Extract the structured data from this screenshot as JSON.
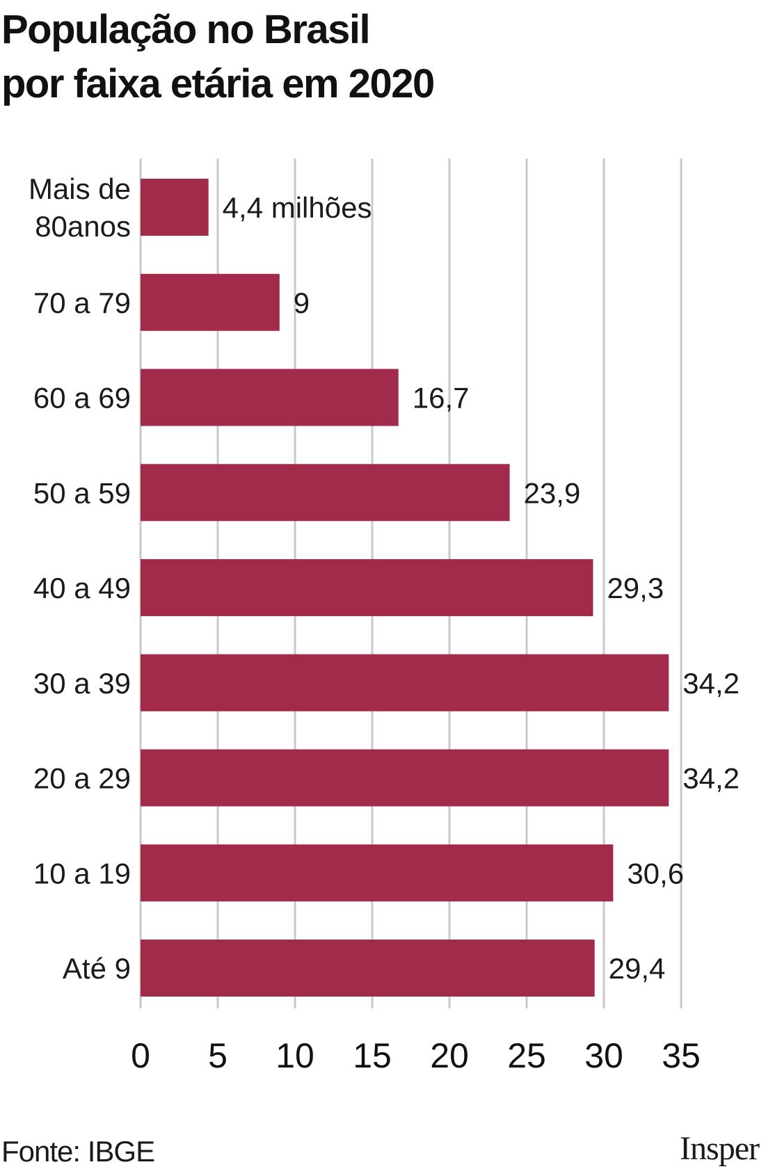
{
  "title_lines": [
    "População no Brasil",
    "por faixa etária em 2020"
  ],
  "source": "Fonte: IBGE",
  "brand": "Insper",
  "colors": {
    "bar": "#A22B4B",
    "grid": "#C8C8C8",
    "text": "#1A1A1A"
  },
  "chart_data": {
    "type": "bar",
    "orientation": "horizontal",
    "title": "População no Brasil por faixa etária em 2020",
    "categories": [
      [
        "Mais de",
        "80anos"
      ],
      [
        "70 a 79"
      ],
      [
        "60 a 69"
      ],
      [
        "50 a 59"
      ],
      [
        "40 a 49"
      ],
      [
        "30 a 39"
      ],
      [
        "20 a 29"
      ],
      [
        "10 a 19"
      ],
      [
        "Até 9"
      ]
    ],
    "values": [
      4.4,
      9,
      16.7,
      23.9,
      29.3,
      34.2,
      34.2,
      30.6,
      29.4
    ],
    "value_labels": [
      "4,4 milhões",
      "9",
      "16,7",
      "23,9",
      "29,3",
      "34,2",
      "34,2",
      "30,6",
      "29,4"
    ],
    "xlim": [
      0,
      35
    ],
    "xticks": [
      0,
      5,
      10,
      15,
      20,
      25,
      30,
      35
    ],
    "grid": "vertical",
    "legend": "none"
  }
}
